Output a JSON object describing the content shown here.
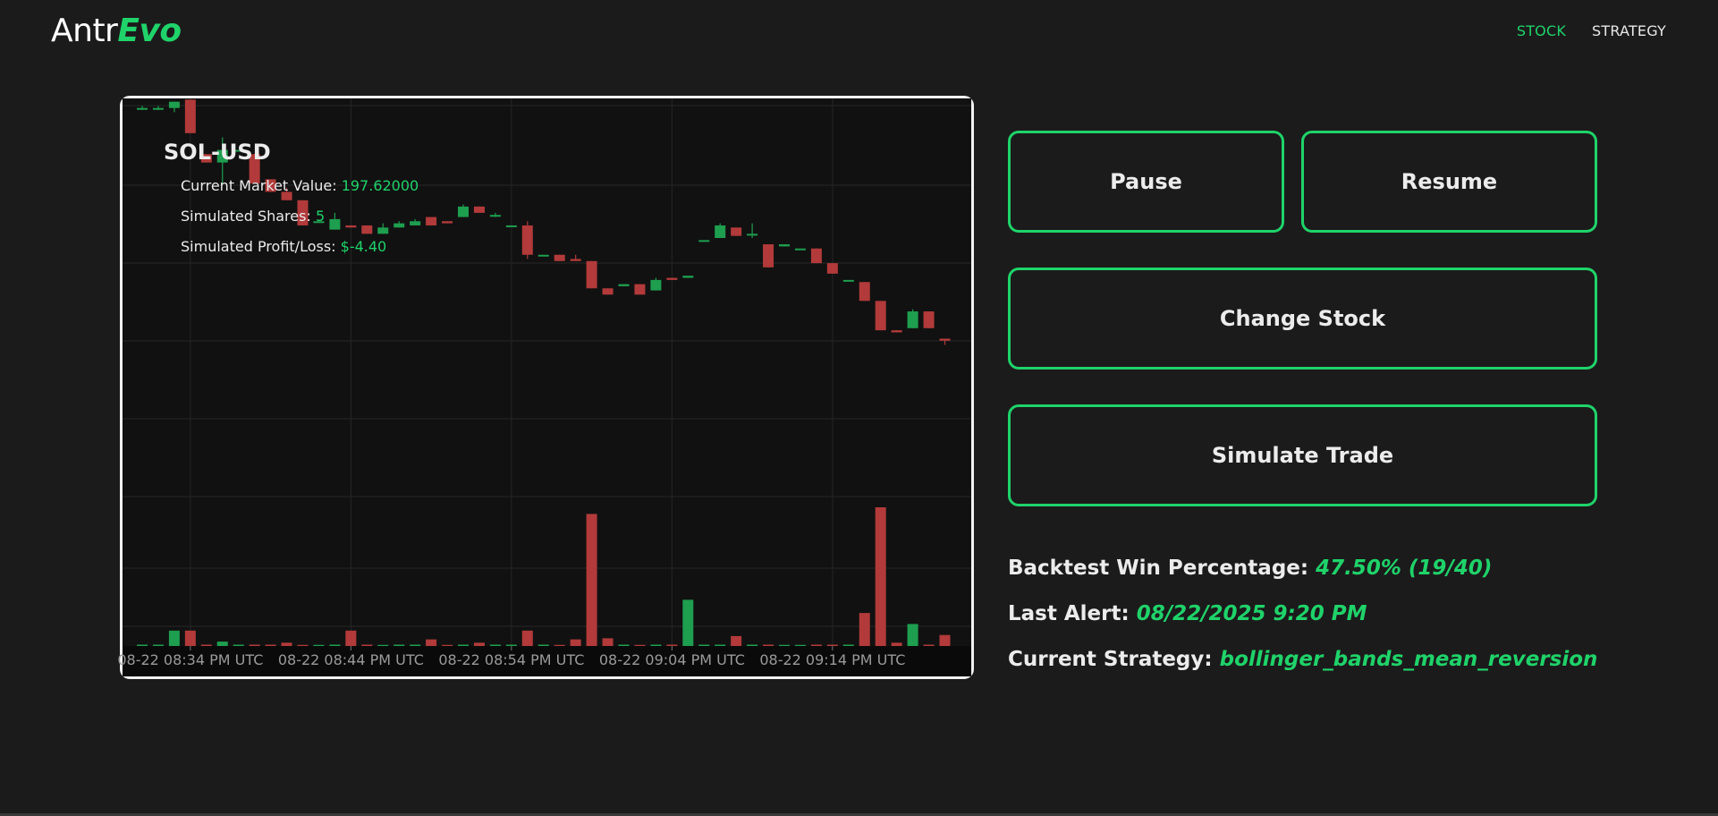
{
  "app": {
    "logo_main": "Antr",
    "logo_accent": "Evo"
  },
  "nav": {
    "items": [
      {
        "label": "STOCK",
        "active": true
      },
      {
        "label": "STRATEGY",
        "active": false
      }
    ]
  },
  "panel": {
    "ticker": "SOL-USD",
    "market_value_label": "Current Market Value:",
    "market_value": "197.62000",
    "shares_label": "Simulated Shares:",
    "shares": "5",
    "pl_label": "Simulated Profit/Loss:",
    "pl": "$-4.40"
  },
  "buttons": {
    "pause": "Pause",
    "resume": "Resume",
    "change_stock": "Change Stock",
    "simulate_trade": "Simulate Trade"
  },
  "stats": {
    "win_label": "Backtest Win Percentage:",
    "win_value": "47.50% (19/40)",
    "alert_label": "Last Alert:",
    "alert_value": "08/22/2025 9:20 PM",
    "strategy_label": "Current Strategy:",
    "strategy_value": "bollinger_bands_mean_reversion"
  },
  "colors": {
    "accent": "#1fd36a",
    "up": "#1e9e4f",
    "down": "#b23a3a"
  },
  "chart_data": {
    "type": "candlestick",
    "x_tick_labels": [
      "08-22 08:34 PM UTC",
      "08-22 08:44 PM UTC",
      "08-22 08:54 PM UTC",
      "08-22 09:04 PM UTC",
      "08-22 09:14 PM UTC"
    ],
    "x_tick_indices": [
      3,
      13,
      23,
      33,
      43
    ],
    "price_range": [
      196.6,
      206.2
    ],
    "candles": [
      {
        "o": 206.1,
        "h": 206.15,
        "l": 206.05,
        "c": 206.1,
        "v": 0
      },
      {
        "o": 206.1,
        "h": 206.15,
        "l": 206.05,
        "c": 206.1,
        "v": 0
      },
      {
        "o": 206.1,
        "h": 206.2,
        "l": 206.0,
        "c": 206.25,
        "v": 14
      },
      {
        "o": 206.3,
        "h": 206.3,
        "l": 205.5,
        "c": 205.5,
        "v": 14
      },
      {
        "o": 205.0,
        "h": 205.0,
        "l": 204.8,
        "c": 204.8,
        "v": 0
      },
      {
        "o": 204.8,
        "h": 205.4,
        "l": 204.3,
        "c": 205.1,
        "v": 4
      },
      {
        "o": 205.1,
        "h": 205.1,
        "l": 205.1,
        "c": 205.1,
        "v": 0
      },
      {
        "o": 205.0,
        "h": 205.0,
        "l": 204.3,
        "c": 204.3,
        "v": 0
      },
      {
        "o": 204.4,
        "h": 204.4,
        "l": 204.1,
        "c": 204.1,
        "v": 0
      },
      {
        "o": 204.1,
        "h": 204.2,
        "l": 203.9,
        "c": 203.9,
        "v": 3
      },
      {
        "o": 203.9,
        "h": 203.9,
        "l": 203.3,
        "c": 203.3,
        "v": 1
      },
      {
        "o": 203.4,
        "h": 203.4,
        "l": 203.4,
        "c": 203.4,
        "v": 1
      },
      {
        "o": 203.2,
        "h": 203.6,
        "l": 203.2,
        "c": 203.45,
        "v": 0
      },
      {
        "o": 203.3,
        "h": 203.3,
        "l": 203.25,
        "c": 203.25,
        "v": 14
      },
      {
        "o": 203.3,
        "h": 203.3,
        "l": 203.1,
        "c": 203.1,
        "v": 0
      },
      {
        "o": 203.1,
        "h": 203.35,
        "l": 203.1,
        "c": 203.25,
        "v": 1
      },
      {
        "o": 203.25,
        "h": 203.4,
        "l": 203.25,
        "c": 203.35,
        "v": 0
      },
      {
        "o": 203.3,
        "h": 203.45,
        "l": 203.3,
        "c": 203.4,
        "v": 0
      },
      {
        "o": 203.5,
        "h": 203.5,
        "l": 203.3,
        "c": 203.3,
        "v": 6
      },
      {
        "o": 203.4,
        "h": 203.4,
        "l": 203.35,
        "c": 203.35,
        "v": 1
      },
      {
        "o": 203.5,
        "h": 203.8,
        "l": 203.5,
        "c": 203.75,
        "v": 0
      },
      {
        "o": 203.75,
        "h": 203.75,
        "l": 203.6,
        "c": 203.6,
        "v": 3
      },
      {
        "o": 203.55,
        "h": 203.6,
        "l": 203.5,
        "c": 203.55,
        "v": 0
      },
      {
        "o": 203.3,
        "h": 203.3,
        "l": 203.3,
        "c": 203.3,
        "v": 0
      },
      {
        "o": 203.3,
        "h": 203.4,
        "l": 202.5,
        "c": 202.6,
        "v": 14
      },
      {
        "o": 202.6,
        "h": 202.6,
        "l": 202.6,
        "c": 202.6,
        "v": 0
      },
      {
        "o": 202.6,
        "h": 202.6,
        "l": 202.45,
        "c": 202.45,
        "v": 1
      },
      {
        "o": 202.5,
        "h": 202.6,
        "l": 202.45,
        "c": 202.45,
        "v": 6
      },
      {
        "o": 202.45,
        "h": 202.45,
        "l": 201.8,
        "c": 201.8,
        "v": 120
      },
      {
        "o": 201.8,
        "h": 201.8,
        "l": 201.65,
        "c": 201.65,
        "v": 7
      },
      {
        "o": 201.85,
        "h": 201.9,
        "l": 201.85,
        "c": 201.9,
        "v": 0
      },
      {
        "o": 201.9,
        "h": 201.9,
        "l": 201.65,
        "c": 201.65,
        "v": 1
      },
      {
        "o": 201.75,
        "h": 202.05,
        "l": 201.75,
        "c": 202.0,
        "v": 0
      },
      {
        "o": 202.05,
        "h": 202.05,
        "l": 202.0,
        "c": 202.0,
        "v": 0
      },
      {
        "o": 202.05,
        "h": 202.1,
        "l": 202.05,
        "c": 202.1,
        "v": 42
      },
      {
        "o": 202.95,
        "h": 202.95,
        "l": 202.95,
        "c": 202.95,
        "v": 0
      },
      {
        "o": 203.0,
        "h": 203.35,
        "l": 203.0,
        "c": 203.3,
        "v": 0
      },
      {
        "o": 203.25,
        "h": 203.25,
        "l": 203.05,
        "c": 203.05,
        "v": 9
      },
      {
        "o": 203.1,
        "h": 203.35,
        "l": 203.0,
        "c": 203.1,
        "v": 0
      },
      {
        "o": 202.85,
        "h": 202.85,
        "l": 202.3,
        "c": 202.3,
        "v": 0
      },
      {
        "o": 202.8,
        "h": 202.85,
        "l": 202.8,
        "c": 202.85,
        "v": 1
      },
      {
        "o": 202.75,
        "h": 202.75,
        "l": 202.75,
        "c": 202.75,
        "v": 1
      },
      {
        "o": 202.75,
        "h": 202.75,
        "l": 202.4,
        "c": 202.4,
        "v": 0
      },
      {
        "o": 202.4,
        "h": 202.4,
        "l": 202.15,
        "c": 202.15,
        "v": 0
      },
      {
        "o": 202.0,
        "h": 202.0,
        "l": 202.0,
        "c": 202.0,
        "v": 0
      },
      {
        "o": 201.95,
        "h": 201.95,
        "l": 201.5,
        "c": 201.5,
        "v": 30
      },
      {
        "o": 201.5,
        "h": 201.5,
        "l": 200.8,
        "c": 200.8,
        "v": 126
      },
      {
        "o": 200.8,
        "h": 200.8,
        "l": 200.75,
        "c": 200.75,
        "v": 3
      },
      {
        "o": 200.85,
        "h": 201.3,
        "l": 200.85,
        "c": 201.25,
        "v": 20
      },
      {
        "o": 201.25,
        "h": 201.25,
        "l": 200.85,
        "c": 200.85,
        "v": 0
      },
      {
        "o": 200.6,
        "h": 200.6,
        "l": 200.45,
        "c": 200.55,
        "v": 10
      }
    ]
  }
}
